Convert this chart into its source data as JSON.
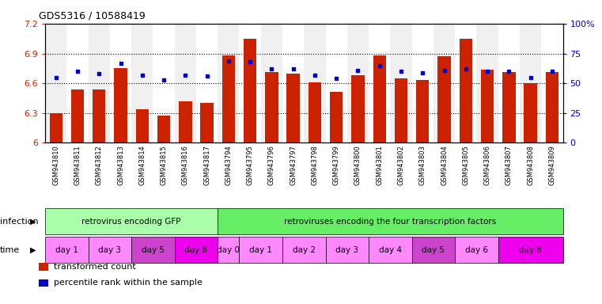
{
  "title": "GDS5316 / 10588419",
  "samples": [
    "GSM943810",
    "GSM943811",
    "GSM943812",
    "GSM943813",
    "GSM943814",
    "GSM943815",
    "GSM943816",
    "GSM943817",
    "GSM943794",
    "GSM943795",
    "GSM943796",
    "GSM943797",
    "GSM943798",
    "GSM943799",
    "GSM943800",
    "GSM943801",
    "GSM943802",
    "GSM943803",
    "GSM943804",
    "GSM943805",
    "GSM943806",
    "GSM943807",
    "GSM943808",
    "GSM943809"
  ],
  "transformed_count": [
    6.3,
    6.54,
    6.54,
    6.75,
    6.34,
    6.27,
    6.42,
    6.4,
    6.88,
    7.05,
    6.71,
    6.7,
    6.61,
    6.51,
    6.68,
    6.88,
    6.65,
    6.63,
    6.87,
    7.05,
    6.74,
    6.71,
    6.6,
    6.71
  ],
  "percentile_rank": [
    55,
    60,
    58,
    67,
    57,
    53,
    57,
    56,
    69,
    68,
    62,
    62,
    57,
    54,
    61,
    65,
    60,
    59,
    61,
    62,
    60,
    60,
    55,
    60
  ],
  "ylim_left": [
    6.0,
    7.2
  ],
  "ylim_right": [
    0,
    100
  ],
  "yticks_left": [
    6.0,
    6.3,
    6.6,
    6.9,
    7.2
  ],
  "ytick_labels_left": [
    "6",
    "6.3",
    "6.6",
    "6.9",
    "7.2"
  ],
  "yticks_right": [
    0,
    25,
    50,
    75,
    100
  ],
  "ytick_labels_right": [
    "0",
    "25",
    "50",
    "75",
    "100%"
  ],
  "bar_color": "#cc2200",
  "dot_color": "#0000cc",
  "baseline": 6.0,
  "infection_groups": [
    {
      "label": "retrovirus encoding GFP",
      "start": 0,
      "end": 8,
      "color": "#aaffaa"
    },
    {
      "label": "retroviruses encoding the four transcription factors",
      "start": 8,
      "end": 24,
      "color": "#66ee66"
    }
  ],
  "time_groups": [
    {
      "label": "day 1",
      "start": 0,
      "end": 2,
      "color": "#ff88ff"
    },
    {
      "label": "day 3",
      "start": 2,
      "end": 4,
      "color": "#ff88ff"
    },
    {
      "label": "day 5",
      "start": 4,
      "end": 6,
      "color": "#cc44cc"
    },
    {
      "label": "day 8",
      "start": 6,
      "end": 8,
      "color": "#ee00ee"
    },
    {
      "label": "day 0",
      "start": 8,
      "end": 9,
      "color": "#ff88ff"
    },
    {
      "label": "day 1",
      "start": 9,
      "end": 11,
      "color": "#ff88ff"
    },
    {
      "label": "day 2",
      "start": 11,
      "end": 13,
      "color": "#ff88ff"
    },
    {
      "label": "day 3",
      "start": 13,
      "end": 15,
      "color": "#ff88ff"
    },
    {
      "label": "day 4",
      "start": 15,
      "end": 17,
      "color": "#ff88ff"
    },
    {
      "label": "day 5",
      "start": 17,
      "end": 19,
      "color": "#cc44cc"
    },
    {
      "label": "day 6",
      "start": 19,
      "end": 21,
      "color": "#ff88ff"
    },
    {
      "label": "day 8",
      "start": 21,
      "end": 24,
      "color": "#ee00ee"
    }
  ],
  "legend_items": [
    {
      "label": "transformed count",
      "color": "#cc2200"
    },
    {
      "label": "percentile rank within the sample",
      "color": "#0000cc"
    }
  ],
  "grid_style": "dotted",
  "grid_color": "#000000",
  "bg_color": "#f0f0f0"
}
